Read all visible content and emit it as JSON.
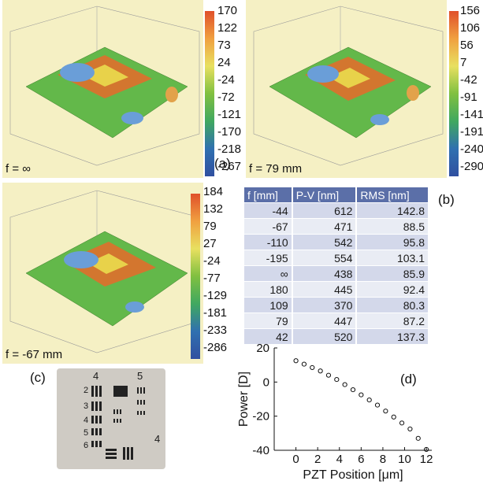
{
  "panel_a": {
    "letter": "(a)",
    "plot_left": {
      "caption": "f = ∞",
      "colorbar_ticks": [
        "170",
        "122",
        "73",
        "24",
        "-24",
        "-72",
        "-121",
        "-170",
        "-218",
        "-267"
      ]
    },
    "plot_right": {
      "caption": "f = 79 mm",
      "colorbar_ticks": [
        "156",
        "106",
        "56",
        "7",
        "-42",
        "-91",
        "-141",
        "-191",
        "-240",
        "-290"
      ]
    },
    "plot_bottom": {
      "caption": "f = -67 mm",
      "colorbar_ticks": [
        "184",
        "132",
        "79",
        "27",
        "-24",
        "-77",
        "-129",
        "-181",
        "-233",
        "-286"
      ]
    }
  },
  "panel_b": {
    "letter": "(b)",
    "headers": [
      "f [mm]",
      "P-V [nm]",
      "RMS [nm]"
    ],
    "rows": [
      [
        "-44",
        "612",
        "142.8"
      ],
      [
        "-67",
        "471",
        "88.5"
      ],
      [
        "-110",
        "542",
        "95.8"
      ],
      [
        "-195",
        "554",
        "103.1"
      ],
      [
        "∞",
        "438",
        "85.9"
      ],
      [
        "180",
        "445",
        "92.4"
      ],
      [
        "109",
        "370",
        "80.3"
      ],
      [
        "79",
        "447",
        "87.2"
      ],
      [
        "42",
        "520",
        "137.3"
      ]
    ]
  },
  "panel_c": {
    "letter": "(c)",
    "group_labels": [
      "4",
      "5",
      "4"
    ],
    "element_labels": [
      "2",
      "3",
      "4",
      "5",
      "6"
    ]
  },
  "panel_d": {
    "letter": "(d)"
  },
  "chart_data": {
    "type": "scatter",
    "xlabel": "PZT Position [μm]",
    "ylabel": "Power [D]",
    "xlim": [
      -2,
      12.5
    ],
    "ylim": [
      -40,
      20
    ],
    "xticks": [
      0,
      2,
      4,
      6,
      8,
      10,
      12
    ],
    "yticks": [
      -40,
      -20,
      0,
      20
    ],
    "grid": false,
    "marker": "open-circle",
    "series": [
      {
        "x": [
          0,
          0.75,
          1.5,
          2.25,
          3,
          3.75,
          4.5,
          5.25,
          6,
          6.75,
          7.5,
          8.25,
          9,
          9.75,
          10.5,
          11.25,
          12
        ],
        "y": [
          12.5,
          10.5,
          8.5,
          6.5,
          4,
          1.5,
          -1.5,
          -4.5,
          -7.5,
          -10.5,
          -13.5,
          -17,
          -20.5,
          -24,
          -27.5,
          -33,
          -39.5
        ]
      }
    ]
  }
}
